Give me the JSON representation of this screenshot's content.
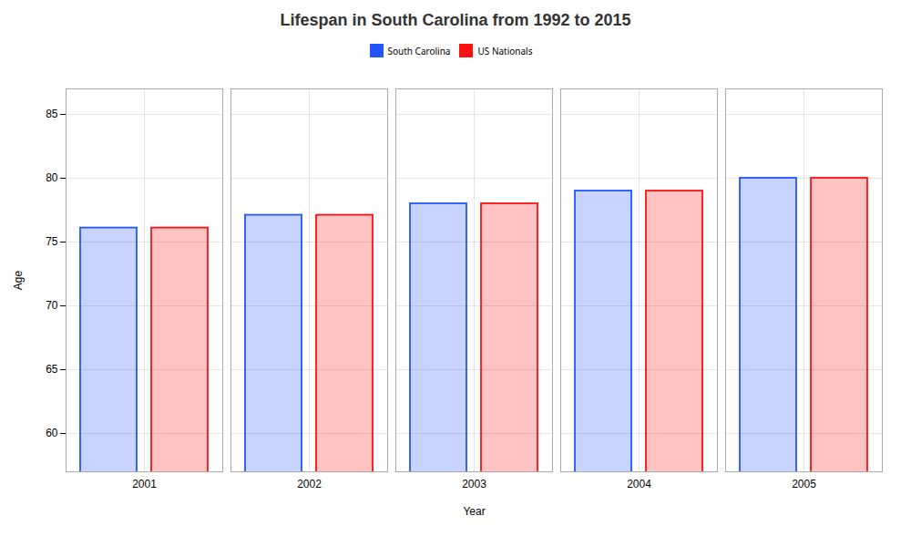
{
  "chart_data": {
    "type": "bar",
    "title": "Lifespan in South Carolina from 1992 to 2015",
    "xlabel": "Year",
    "ylabel": "Age",
    "categories": [
      "2001",
      "2002",
      "2003",
      "2004",
      "2005"
    ],
    "series": [
      {
        "name": "South Carolina",
        "color": "#2255FF",
        "values": [
          76.1,
          77.1,
          78.0,
          79.0,
          80.0
        ]
      },
      {
        "name": "US Nationals",
        "color": "#FF1111",
        "values": [
          76.1,
          77.1,
          78.0,
          79.0,
          80.0
        ]
      }
    ],
    "ylim": [
      57,
      87
    ],
    "yticks": [
      60,
      65,
      70,
      75,
      80,
      85
    ],
    "grid": true,
    "legend": "top"
  }
}
